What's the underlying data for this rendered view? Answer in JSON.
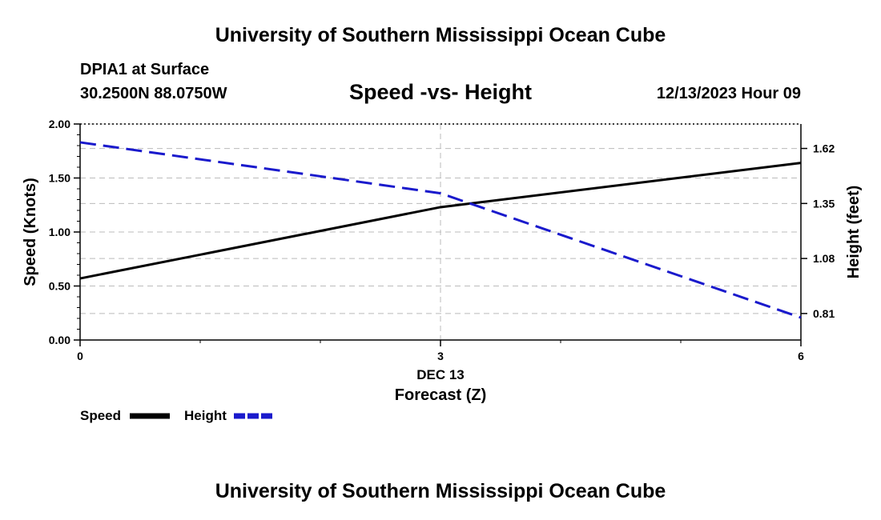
{
  "header": {
    "title": "University of Southern Mississippi Ocean Cube",
    "station": "DPIA1 at Surface",
    "coords": "30.2500N  88.0750W",
    "subtitle": "Speed -vs- Height",
    "timestamp": "12/13/2023 Hour 09"
  },
  "footer": {
    "title": "University of Southern Mississippi Ocean Cube"
  },
  "colors": {
    "speed": "#000000",
    "height": "#1a1acc"
  },
  "chart_data": {
    "type": "line",
    "title": "Speed -vs- Height",
    "x": [
      0,
      3,
      6
    ],
    "xlim": [
      0,
      6
    ],
    "x_ticks": [
      "0",
      "3",
      "6"
    ],
    "x_date_label": "DEC 13",
    "xlabel": "Forecast (Z)",
    "ylabel_left": "Speed (Knots)",
    "ylabel_right": "Height (feet)",
    "ylim_left": [
      0,
      2.0
    ],
    "y_ticks_left": [
      "0.00",
      "0.50",
      "1.00",
      "1.50",
      "2.00"
    ],
    "ylim_right": [
      0.68,
      1.74
    ],
    "y_ticks_right": [
      "0.81",
      "1.08",
      "1.35",
      "1.62"
    ],
    "grid": true,
    "series": [
      {
        "name": "Speed",
        "axis": "left",
        "style": "solid",
        "values": [
          0.57,
          1.23,
          1.64
        ]
      },
      {
        "name": "Height",
        "axis": "right",
        "style": "dashed",
        "values": [
          1.65,
          1.4,
          0.79
        ]
      }
    ],
    "legend": [
      "Speed",
      "Height"
    ]
  }
}
